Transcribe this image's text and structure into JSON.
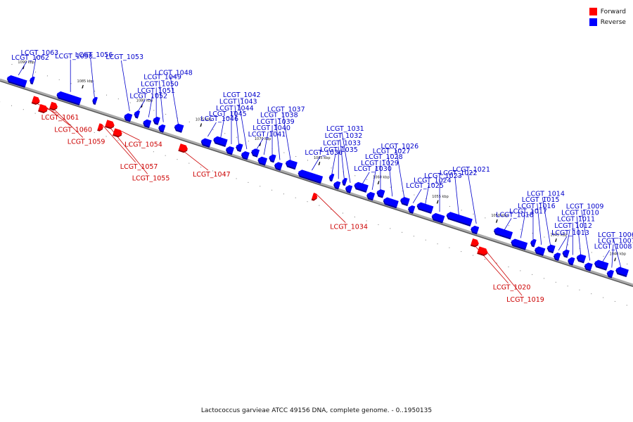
{
  "caption": "Lactococcus garvieae ATCC 49156 DNA, complete genome. - 0..1950135",
  "legend": [
    {
      "label": "Forward",
      "color": "#ff0000"
    },
    {
      "label": "Reverse",
      "color": "#0000ff"
    }
  ],
  "colors": {
    "forward_label": "#cc0000",
    "reverse_label": "#0000cc"
  },
  "ruler": [
    {
      "label": "1090 kbp",
      "kbp": 1090
    },
    {
      "label": "1085 kbp",
      "kbp": 1085
    },
    {
      "label": "1080 kbp",
      "kbp": 1080
    },
    {
      "label": "1075 kbp",
      "kbp": 1075
    },
    {
      "label": "1070 kbp",
      "kbp": 1070
    },
    {
      "label": "1065 kbp",
      "kbp": 1065
    },
    {
      "label": "1060 kbp",
      "kbp": 1060
    },
    {
      "label": "1055 kbp",
      "kbp": 1055
    },
    {
      "label": "1050 kbp",
      "kbp": 1050
    },
    {
      "label": "1045 kbp",
      "kbp": 1045
    },
    {
      "label": "1040 kbp",
      "kbp": 1040
    }
  ],
  "genes": [
    {
      "id": "LCGT_1062",
      "strand": "reverse",
      "start": 1089.4,
      "end": 1091.0
    },
    {
      "id": "LCGT_1063",
      "strand": "reverse",
      "start": 1088.9,
      "end": 1089.2
    },
    {
      "id": "LCGT_1058",
      "strand": "reverse",
      "start": 1084.8,
      "end": 1086.8
    },
    {
      "id": "LCGT_1061",
      "strand": "forward",
      "start": 1087.9,
      "end": 1088.5
    },
    {
      "id": "LCGT_1060",
      "strand": "forward",
      "start": 1087.1,
      "end": 1087.8
    },
    {
      "id": "LCGT_1059",
      "strand": "forward",
      "start": 1086.4,
      "end": 1087.0
    },
    {
      "id": "LCGT_1056",
      "strand": "reverse",
      "start": 1083.6,
      "end": 1083.9
    },
    {
      "id": "LCGT_1057",
      "strand": "forward",
      "start": 1082.4,
      "end": 1082.8
    },
    {
      "id": "LCGT_1055",
      "strand": "forward",
      "start": 1081.6,
      "end": 1082.3
    },
    {
      "id": "LCGT_1054",
      "strand": "forward",
      "start": 1080.8,
      "end": 1081.5
    },
    {
      "id": "LCGT_1053",
      "strand": "reverse",
      "start": 1080.5,
      "end": 1081.1
    },
    {
      "id": "LCGT_1052",
      "strand": "reverse",
      "start": 1080.0,
      "end": 1080.4
    },
    {
      "id": "LCGT_1051",
      "strand": "reverse",
      "start": 1078.9,
      "end": 1079.5
    },
    {
      "id": "LCGT_1050",
      "strand": "reverse",
      "start": 1078.3,
      "end": 1078.8
    },
    {
      "id": "LCGT_1049",
      "strand": "reverse",
      "start": 1077.7,
      "end": 1078.2
    },
    {
      "id": "LCGT_1048",
      "strand": "reverse",
      "start": 1076.3,
      "end": 1077.0
    },
    {
      "id": "LCGT_1047",
      "strand": "forward",
      "start": 1075.4,
      "end": 1076.1
    },
    {
      "id": "LCGT_1046",
      "strand": "reverse",
      "start": 1073.8,
      "end": 1074.6
    },
    {
      "id": "LCGT_1045",
      "strand": "reverse",
      "start": 1072.6,
      "end": 1073.7
    },
    {
      "id": "LCGT_1044",
      "strand": "reverse",
      "start": 1071.9,
      "end": 1072.5
    },
    {
      "id": "LCGT_1043",
      "strand": "reverse",
      "start": 1071.3,
      "end": 1071.8
    },
    {
      "id": "LCGT_1042",
      "strand": "reverse",
      "start": 1070.6,
      "end": 1071.2
    },
    {
      "id": "LCGT_1041",
      "strand": "reverse",
      "start": 1069.9,
      "end": 1070.5
    },
    {
      "id": "LCGT_1040",
      "strand": "reverse",
      "start": 1069.1,
      "end": 1069.8
    },
    {
      "id": "LCGT_1039",
      "strand": "reverse",
      "start": 1068.5,
      "end": 1069.0
    },
    {
      "id": "LCGT_1038",
      "strand": "reverse",
      "start": 1067.8,
      "end": 1068.4
    },
    {
      "id": "LCGT_1037",
      "strand": "reverse",
      "start": 1066.7,
      "end": 1067.6
    },
    {
      "id": "LCGT_1036",
      "strand": "reverse",
      "start": 1064.4,
      "end": 1066.4
    },
    {
      "id": "LCGT_1034",
      "strand": "forward",
      "start": 1064.3,
      "end": 1064.7
    },
    {
      "id": "LCGT_1035",
      "strand": "reverse",
      "start": 1063.6,
      "end": 1063.9
    },
    {
      "id": "LCGT_1033",
      "strand": "reverse",
      "start": 1062.9,
      "end": 1063.4
    },
    {
      "id": "LCGT_1032",
      "strand": "reverse",
      "start": 1062.5,
      "end": 1062.8
    },
    {
      "id": "LCGT_1031",
      "strand": "reverse",
      "start": 1061.9,
      "end": 1062.4
    },
    {
      "id": "LCGT_1030",
      "strand": "reverse",
      "start": 1060.7,
      "end": 1061.8
    },
    {
      "id": "LCGT_1029",
      "strand": "reverse",
      "start": 1060.0,
      "end": 1060.6
    },
    {
      "id": "LCGT_1028",
      "strand": "reverse",
      "start": 1059.3,
      "end": 1059.9
    },
    {
      "id": "LCGT_1027",
      "strand": "reverse",
      "start": 1058.0,
      "end": 1059.2
    },
    {
      "id": "LCGT_1026",
      "strand": "reverse",
      "start": 1057.2,
      "end": 1057.9
    },
    {
      "id": "LCGT_1025",
      "strand": "reverse",
      "start": 1056.6,
      "end": 1057.1
    },
    {
      "id": "LCGT_1024",
      "strand": "reverse",
      "start": 1055.2,
      "end": 1056.5
    },
    {
      "id": "LCGT_1023",
      "strand": "reverse",
      "start": 1054.1,
      "end": 1055.1
    },
    {
      "id": "LCGT_1022",
      "strand": "reverse",
      "start": 1051.9,
      "end": 1054.0
    },
    {
      "id": "LCGT_1021",
      "strand": "reverse",
      "start": 1051.2,
      "end": 1051.8
    },
    {
      "id": "LCGT_1020",
      "strand": "forward",
      "start": 1050.8,
      "end": 1051.4
    },
    {
      "id": "LCGT_1019",
      "strand": "forward",
      "start": 1049.9,
      "end": 1050.7
    },
    {
      "id": "LCGT_1018",
      "strand": "reverse",
      "start": 1048.5,
      "end": 1050.0
    },
    {
      "id": "LCGT_1017",
      "strand": "reverse",
      "start": 1047.1,
      "end": 1048.4
    },
    {
      "id": "LCGT_1016",
      "strand": "reverse",
      "start": 1046.5,
      "end": 1046.9
    },
    {
      "id": "LCGT_1015",
      "strand": "reverse",
      "start": 1045.6,
      "end": 1046.4
    },
    {
      "id": "LCGT_1014",
      "strand": "reverse",
      "start": 1044.9,
      "end": 1045.5
    },
    {
      "id": "LCGT_1013",
      "strand": "reverse",
      "start": 1044.3,
      "end": 1044.8
    },
    {
      "id": "LCGT_1012",
      "strand": "reverse",
      "start": 1043.7,
      "end": 1044.2
    },
    {
      "id": "LCGT_1011",
      "strand": "reverse",
      "start": 1043.1,
      "end": 1043.6
    },
    {
      "id": "LCGT_1010",
      "strand": "reverse",
      "start": 1042.3,
      "end": 1043.0
    },
    {
      "id": "LCGT_1009",
      "strand": "reverse",
      "start": 1041.6,
      "end": 1042.2
    },
    {
      "id": "LCGT_1008",
      "strand": "reverse",
      "start": 1040.4,
      "end": 1041.5
    },
    {
      "id": "LCGT_1007",
      "strand": "reverse",
      "start": 1039.8,
      "end": 1040.3
    },
    {
      "id": "LCGT_1006",
      "strand": "reverse",
      "start": 1038.7,
      "end": 1039.7
    }
  ]
}
